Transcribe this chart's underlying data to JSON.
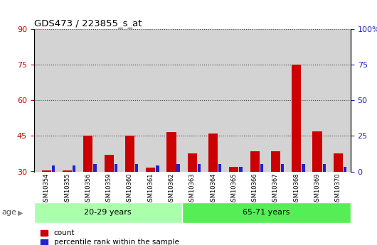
{
  "title": "GDS473 / 223855_s_at",
  "samples": [
    "GSM10354",
    "GSM10355",
    "GSM10356",
    "GSM10359",
    "GSM10360",
    "GSM10361",
    "GSM10362",
    "GSM10363",
    "GSM10364",
    "GSM10365",
    "GSM10366",
    "GSM10367",
    "GSM10368",
    "GSM10369",
    "GSM10370"
  ],
  "count_values": [
    30.5,
    30.5,
    45.0,
    37.0,
    45.0,
    31.5,
    46.5,
    37.5,
    46.0,
    32.0,
    38.5,
    38.5,
    75.0,
    47.0,
    37.5
  ],
  "percentile_values": [
    4,
    4,
    5,
    5,
    5,
    4,
    5,
    5,
    5,
    3,
    5,
    5,
    5,
    5,
    3
  ],
  "group1_label": "20-29 years",
  "group2_label": "65-71 years",
  "group1_count": 7,
  "group2_count": 8,
  "ylim_left": [
    30,
    90
  ],
  "ylim_right": [
    0,
    100
  ],
  "yticks_left": [
    30,
    45,
    60,
    75,
    90
  ],
  "yticks_right": [
    0,
    25,
    50,
    75,
    100
  ],
  "yticklabels_right": [
    "0",
    "25",
    "50",
    "75",
    "100%"
  ],
  "bar_color_red": "#cc0000",
  "bar_color_blue": "#2222cc",
  "bg_color_plot": "#d3d3d3",
  "bg_color_group1": "#aaffaa",
  "bg_color_group2": "#55ee55",
  "legend_count": "count",
  "legend_pct": "percentile rank within the sample",
  "xlabel_age": "age",
  "dotted_line_color": "#444444",
  "title_color": "#000000",
  "left_tick_color": "#cc0000",
  "right_tick_color": "#2222cc",
  "red_bar_width": 0.45,
  "blue_bar_width": 0.15
}
